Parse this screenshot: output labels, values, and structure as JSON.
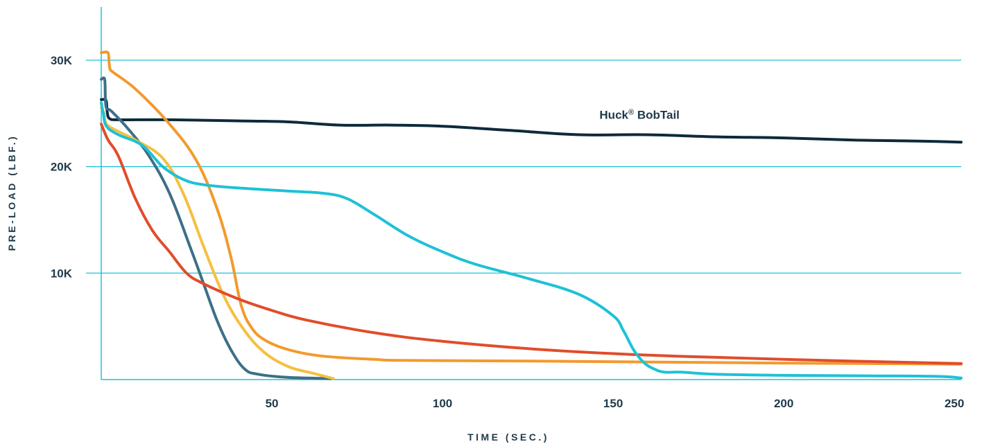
{
  "chart_data": {
    "type": "line",
    "xlabel": "TIME (SEC.)",
    "ylabel": "PRE-LOAD (LBF.)",
    "xlim": [
      0,
      252
    ],
    "ylim": [
      0,
      35000
    ],
    "x_ticks": [
      {
        "value": 50,
        "label": "50"
      },
      {
        "value": 100,
        "label": "100"
      },
      {
        "value": 150,
        "label": "150"
      },
      {
        "value": 200,
        "label": "200"
      },
      {
        "value": 250,
        "label": "250"
      }
    ],
    "y_ticks": [
      {
        "value": 10000,
        "label": "10K"
      },
      {
        "value": 20000,
        "label": "20K"
      },
      {
        "value": 30000,
        "label": "30K"
      }
    ],
    "grid": {
      "horizontal": true,
      "vertical": false
    },
    "annotations": [
      {
        "text": "Huck® BobTail",
        "x": 146,
        "y": 24500
      }
    ],
    "series": [
      {
        "color": "#0d2a3a",
        "x": [
          0,
          1,
          1.5,
          1.8,
          2.5,
          5,
          20,
          40,
          55,
          70,
          85,
          100,
          120,
          140,
          160,
          180,
          200,
          220,
          240,
          252
        ],
        "y": [
          26300,
          26300,
          26100,
          25000,
          24500,
          24400,
          24400,
          24300,
          24200,
          23900,
          23900,
          23800,
          23400,
          23000,
          23000,
          22800,
          22700,
          22500,
          22400,
          22300
        ]
      },
      {
        "color": "#3d6f88",
        "x": [
          0,
          1,
          1.2,
          1.5,
          3,
          8,
          14,
          20,
          26,
          30,
          34,
          38,
          42,
          46,
          55,
          68
        ],
        "y": [
          28200,
          28200,
          26500,
          25500,
          25200,
          23500,
          21000,
          17500,
          12500,
          9000,
          5500,
          2800,
          1000,
          500,
          200,
          100
        ]
      },
      {
        "color": "#f4c040",
        "x": [
          0,
          0.8,
          1.5,
          5,
          10,
          18,
          24,
          30,
          36,
          42,
          48,
          55,
          62,
          68
        ],
        "y": [
          25500,
          25000,
          24000,
          23300,
          22500,
          20800,
          17500,
          12500,
          7800,
          4600,
          2500,
          1200,
          600,
          100
        ]
      },
      {
        "color": "#f29a2e",
        "x": [
          0,
          2,
          2.3,
          2.6,
          10,
          20,
          28,
          34,
          38,
          41,
          44,
          48,
          55,
          65,
          80,
          88,
          120,
          160,
          200,
          252
        ],
        "y": [
          30700,
          30700,
          29800,
          29100,
          27300,
          24000,
          20500,
          16000,
          11500,
          7000,
          4900,
          3700,
          2800,
          2200,
          1900,
          1800,
          1750,
          1650,
          1550,
          1450
        ]
      },
      {
        "color": "#e04d2b",
        "x": [
          0,
          2,
          5,
          10,
          15,
          20,
          25,
          30,
          40,
          50,
          60,
          80,
          100,
          130,
          160,
          200,
          252
        ],
        "y": [
          24000,
          22500,
          21000,
          17000,
          14000,
          12000,
          10000,
          9000,
          7600,
          6500,
          5600,
          4400,
          3600,
          2800,
          2300,
          1900,
          1500
        ]
      },
      {
        "color": "#1ec1d6",
        "x": [
          0,
          0.6,
          1.5,
          5,
          12,
          18,
          24,
          30,
          40,
          55,
          65,
          72,
          80,
          90,
          100,
          110,
          125,
          140,
          150,
          153,
          156,
          159,
          162,
          165,
          170,
          180,
          200,
          225,
          245,
          252
        ],
        "y": [
          26000,
          25000,
          23800,
          23000,
          22000,
          20000,
          18800,
          18300,
          18000,
          17700,
          17500,
          17000,
          15500,
          13500,
          12000,
          10800,
          9500,
          8000,
          6000,
          4600,
          2800,
          1600,
          1000,
          700,
          700,
          500,
          400,
          350,
          300,
          150
        ]
      }
    ]
  }
}
